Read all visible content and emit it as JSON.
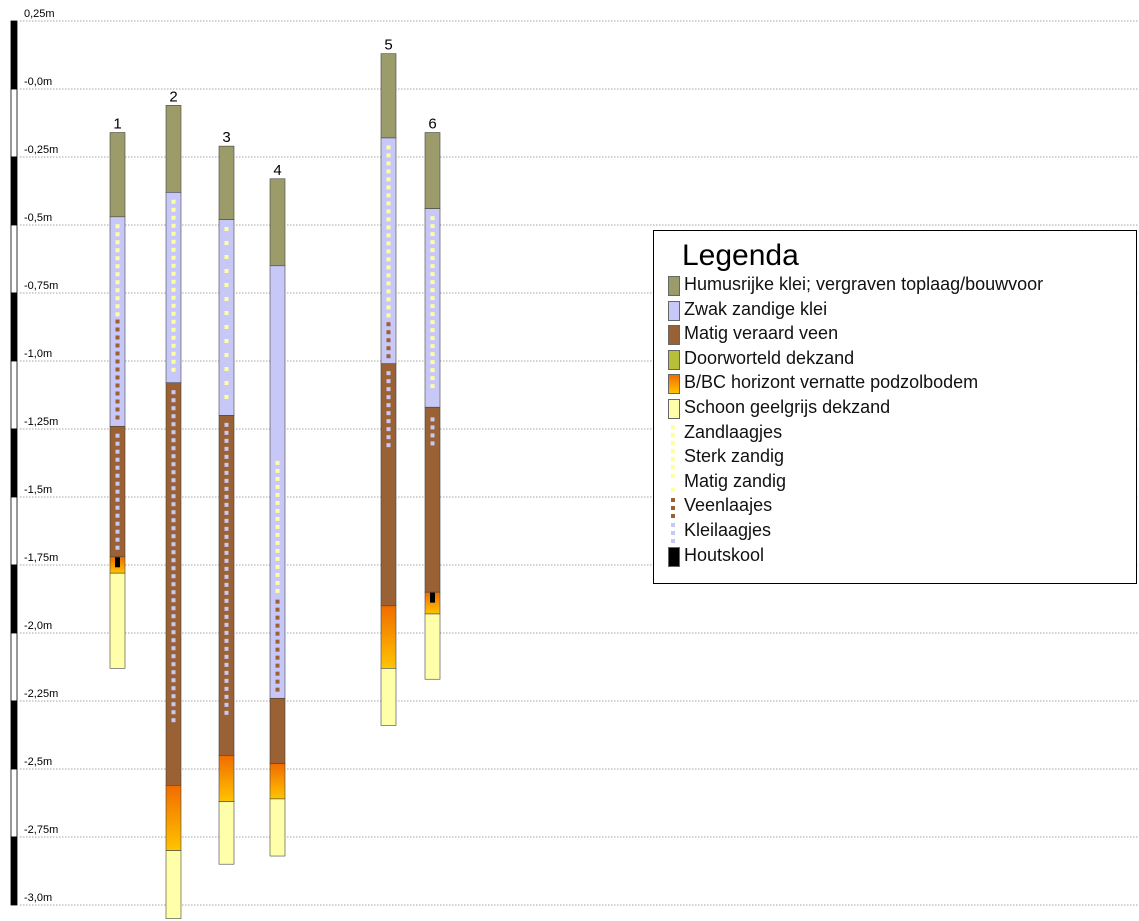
{
  "axis": {
    "labels": [
      "0,25m",
      "-0,0m",
      "-0,25m",
      "-0,5m",
      "-0,75m",
      "-1,0m",
      "-1,25m",
      "-1,5m",
      "-1,75m",
      "-2,0m",
      "-2,25m",
      "-2,5m",
      "-2,75m",
      "-3,0m"
    ],
    "values": [
      0.25,
      0.0,
      -0.25,
      -0.5,
      -0.75,
      -1.0,
      -1.25,
      -1.5,
      -1.75,
      -2.0,
      -2.25,
      -2.5,
      -2.75,
      -3.0
    ],
    "unit": "m"
  },
  "colors": {
    "humus": "#9c9c6a",
    "clay": "#c8c8f8",
    "peat": "#9a6234",
    "rooted": "#b8c03a",
    "bc_top": "#f06c00",
    "bc_bottom": "#ffc400",
    "sand": "#ffffaa",
    "yellow_dot": "#ffffa0",
    "charcoal": "#000000"
  },
  "legend": {
    "title": "Legenda",
    "items": [
      {
        "label": "Humusrijke klei; vergraven toplaag/bouwvoor",
        "type": "humus"
      },
      {
        "label": "Zwak zandige klei",
        "type": "clay"
      },
      {
        "label": "Matig veraard veen",
        "type": "peat"
      },
      {
        "label": "Doorworteld dekzand",
        "type": "rooted"
      },
      {
        "label": "B/BC horizont vernatte podzolbodem",
        "type": "bc"
      },
      {
        "label": "Schoon geelgrijs dekzand",
        "type": "sand"
      },
      {
        "label": "Zandlaagjes",
        "type": "dots-yellow"
      },
      {
        "label": "Sterk zandig",
        "type": "dots-yellow"
      },
      {
        "label": "Matig zandig",
        "type": "dots-yellow-sparse"
      },
      {
        "label": "Veenlaajes",
        "type": "dots-peat"
      },
      {
        "label": "Kleilaagjes",
        "type": "dots-clay"
      },
      {
        "label": "Houtskool",
        "type": "charcoal"
      }
    ]
  },
  "columns": [
    {
      "label": "1",
      "layers": [
        {
          "type": "humus",
          "top": -0.16,
          "bottom": -0.47
        },
        {
          "type": "clay",
          "top": -0.47,
          "bottom": -1.24,
          "dots": "yellow",
          "dotsTop": -0.49,
          "dotsBottom": -0.83
        },
        {
          "type": "peat",
          "top": -1.24,
          "bottom": -1.72,
          "dots": "clay",
          "dotsTop": -1.26,
          "dotsBottom": -1.7
        },
        {
          "type": "bc",
          "top": -1.72,
          "bottom": -1.78
        },
        {
          "type": "sand",
          "top": -1.78,
          "bottom": -2.13
        }
      ],
      "extras": [
        {
          "type": "dots-peat",
          "top": -0.84,
          "bottom": -1.22
        },
        {
          "type": "charcoal",
          "at": -1.74
        }
      ]
    },
    {
      "label": "2",
      "layers": [
        {
          "type": "humus",
          "top": -0.06,
          "bottom": -0.38
        },
        {
          "type": "clay",
          "top": -0.38,
          "bottom": -1.08,
          "dots": "yellow",
          "dotsTop": -0.4,
          "dotsBottom": -1.06
        },
        {
          "type": "peat",
          "top": -1.08,
          "bottom": -2.56,
          "dots": "clay",
          "dotsTop": -1.1,
          "dotsBottom": -2.34
        },
        {
          "type": "bc",
          "top": -2.56,
          "bottom": -2.8
        },
        {
          "type": "sand",
          "top": -2.8,
          "bottom": -3.05
        }
      ],
      "extras": []
    },
    {
      "label": "3",
      "layers": [
        {
          "type": "humus",
          "top": -0.21,
          "bottom": -0.48
        },
        {
          "type": "clay",
          "top": -0.48,
          "bottom": -1.2,
          "dots": "yellow-sparse",
          "dotsTop": -0.5,
          "dotsBottom": -1.15
        },
        {
          "type": "peat",
          "top": -1.2,
          "bottom": -2.45,
          "dots": "clay",
          "dotsTop": -1.22,
          "dotsBottom": -2.3
        },
        {
          "type": "bc",
          "top": -2.45,
          "bottom": -2.62
        },
        {
          "type": "sand",
          "top": -2.62,
          "bottom": -2.85
        }
      ],
      "extras": []
    },
    {
      "label": "4",
      "layers": [
        {
          "type": "humus",
          "top": -0.33,
          "bottom": -0.65
        },
        {
          "type": "clay",
          "top": -0.65,
          "bottom": -2.24,
          "dots": "yellow",
          "dotsTop": -1.36,
          "dotsBottom": -1.87
        },
        {
          "type": "peat",
          "top": -2.24,
          "bottom": -2.48
        },
        {
          "type": "bc",
          "top": -2.48,
          "bottom": -2.61
        },
        {
          "type": "sand",
          "top": -2.61,
          "bottom": -2.82
        }
      ],
      "extras": [
        {
          "type": "dots-peat",
          "top": -1.87,
          "bottom": -2.22
        }
      ]
    },
    {
      "label": "5",
      "layers": [
        {
          "type": "humus",
          "top": 0.13,
          "bottom": -0.18
        },
        {
          "type": "clay",
          "top": -0.18,
          "bottom": -1.01,
          "dots": "yellow",
          "dotsTop": -0.2,
          "dotsBottom": -0.85
        },
        {
          "type": "peat",
          "top": -1.01,
          "bottom": -1.9,
          "dots": "clay",
          "dotsTop": -1.03,
          "dotsBottom": -1.33
        },
        {
          "type": "bc",
          "top": -1.9,
          "bottom": -2.13
        },
        {
          "type": "sand",
          "top": -2.13,
          "bottom": -2.34
        }
      ],
      "extras": [
        {
          "type": "dots-peat",
          "top": -0.85,
          "bottom": -0.99
        }
      ]
    },
    {
      "label": "6",
      "layers": [
        {
          "type": "humus",
          "top": -0.16,
          "bottom": -0.44
        },
        {
          "type": "clay",
          "top": -0.44,
          "bottom": -1.17,
          "dots": "yellow",
          "dotsTop": -0.46,
          "dotsBottom": -1.1
        },
        {
          "type": "peat",
          "top": -1.17,
          "bottom": -1.85,
          "dots": "clay",
          "dotsTop": -1.2,
          "dotsBottom": -1.32
        },
        {
          "type": "bc",
          "top": -1.85,
          "bottom": -1.93
        },
        {
          "type": "sand",
          "top": -1.93,
          "bottom": -2.17
        }
      ],
      "extras": [
        {
          "type": "charcoal",
          "at": -1.87
        }
      ]
    }
  ]
}
